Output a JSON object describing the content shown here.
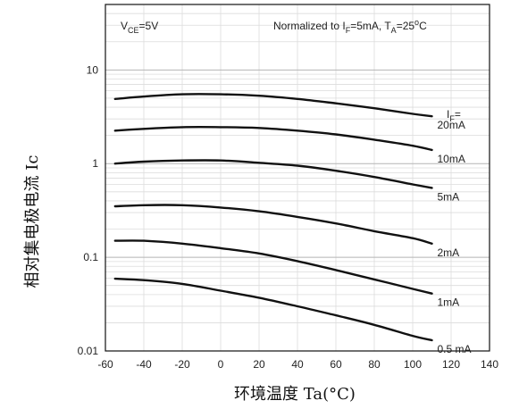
{
  "chart_data": {
    "type": "line",
    "xlabel": "环境温度  Ta(°C)",
    "ylabel": "相对集电极电流 Ic",
    "x_scale": "linear",
    "y_scale": "log",
    "xlim": [
      -60,
      140
    ],
    "ylim": [
      0.01,
      50
    ],
    "x_ticks": [
      -60,
      -40,
      -20,
      0,
      20,
      40,
      60,
      80,
      100,
      120,
      140
    ],
    "y_ticks": [
      {
        "value": 10,
        "label": "10"
      },
      {
        "value": 1,
        "label": "1"
      },
      {
        "value": 0.1,
        "label": "0.1"
      },
      {
        "value": 0.01,
        "label": "0.01"
      }
    ],
    "grid": true,
    "annotations": {
      "vce": {
        "main": "V",
        "sub": "CE",
        "rest": "=5V"
      },
      "normalized": {
        "a": "Normalized to I",
        "a_sub": "F",
        "b": "=5mA, T",
        "b_sub": "A",
        "c": "=25",
        "c_sup": "o",
        "d": "C"
      },
      "legend_title": {
        "main": "I",
        "sub": "F",
        "rest": "="
      }
    },
    "series": [
      {
        "name": "20mA",
        "x": [
          -55,
          -40,
          -20,
          0,
          20,
          40,
          60,
          80,
          100,
          110
        ],
        "y": [
          4.9,
          5.2,
          5.5,
          5.5,
          5.3,
          4.9,
          4.4,
          3.9,
          3.4,
          3.2
        ]
      },
      {
        "name": "10mA",
        "x": [
          -55,
          -40,
          -20,
          0,
          20,
          40,
          60,
          80,
          100,
          110
        ],
        "y": [
          2.25,
          2.35,
          2.45,
          2.45,
          2.4,
          2.25,
          2.05,
          1.8,
          1.55,
          1.4
        ]
      },
      {
        "name": "5mA",
        "x": [
          -55,
          -40,
          -20,
          0,
          20,
          40,
          60,
          80,
          100,
          110
        ],
        "y": [
          1.0,
          1.05,
          1.08,
          1.08,
          1.02,
          0.95,
          0.84,
          0.72,
          0.6,
          0.55
        ]
      },
      {
        "name": "2mA",
        "x": [
          -55,
          -40,
          -20,
          0,
          20,
          40,
          60,
          80,
          100,
          110
        ],
        "y": [
          0.35,
          0.36,
          0.36,
          0.34,
          0.31,
          0.27,
          0.23,
          0.19,
          0.16,
          0.14
        ]
      },
      {
        "name": "1mA",
        "x": [
          -55,
          -40,
          -20,
          0,
          20,
          40,
          60,
          80,
          100,
          110
        ],
        "y": [
          0.15,
          0.15,
          0.14,
          0.125,
          0.11,
          0.091,
          0.073,
          0.058,
          0.046,
          0.041
        ]
      },
      {
        "name": "0.5 mA",
        "x": [
          -55,
          -40,
          -20,
          0,
          20,
          40,
          60,
          80,
          100,
          110
        ],
        "y": [
          0.059,
          0.057,
          0.052,
          0.044,
          0.037,
          0.03,
          0.024,
          0.019,
          0.0145,
          0.013
        ]
      }
    ]
  }
}
